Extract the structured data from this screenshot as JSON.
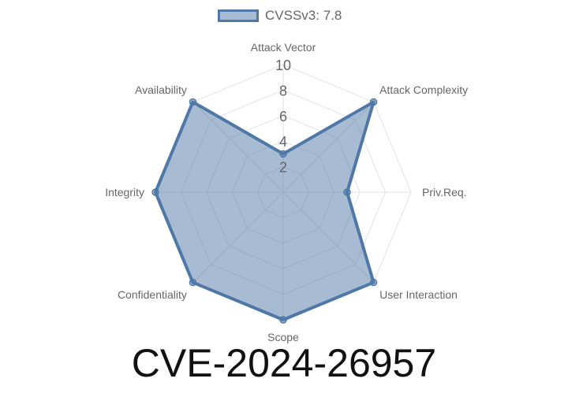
{
  "chart_data": {
    "type": "radar",
    "categories": [
      "Attack Vector",
      "Attack Complexity",
      "Priv.Req.",
      "User Interaction",
      "Scope",
      "Confidentiality",
      "Integrity",
      "Availability"
    ],
    "series": [
      {
        "name": "CVSSv3: 7.8",
        "values": [
          3,
          10,
          5,
          10,
          10,
          10,
          10,
          10
        ],
        "color": "#4f78a7"
      }
    ],
    "rlim": [
      0,
      10
    ],
    "ticks": [
      "2",
      "4",
      "6",
      "8",
      "10"
    ],
    "legend": "top",
    "grid": true
  },
  "title": "CVE-2024-26957"
}
